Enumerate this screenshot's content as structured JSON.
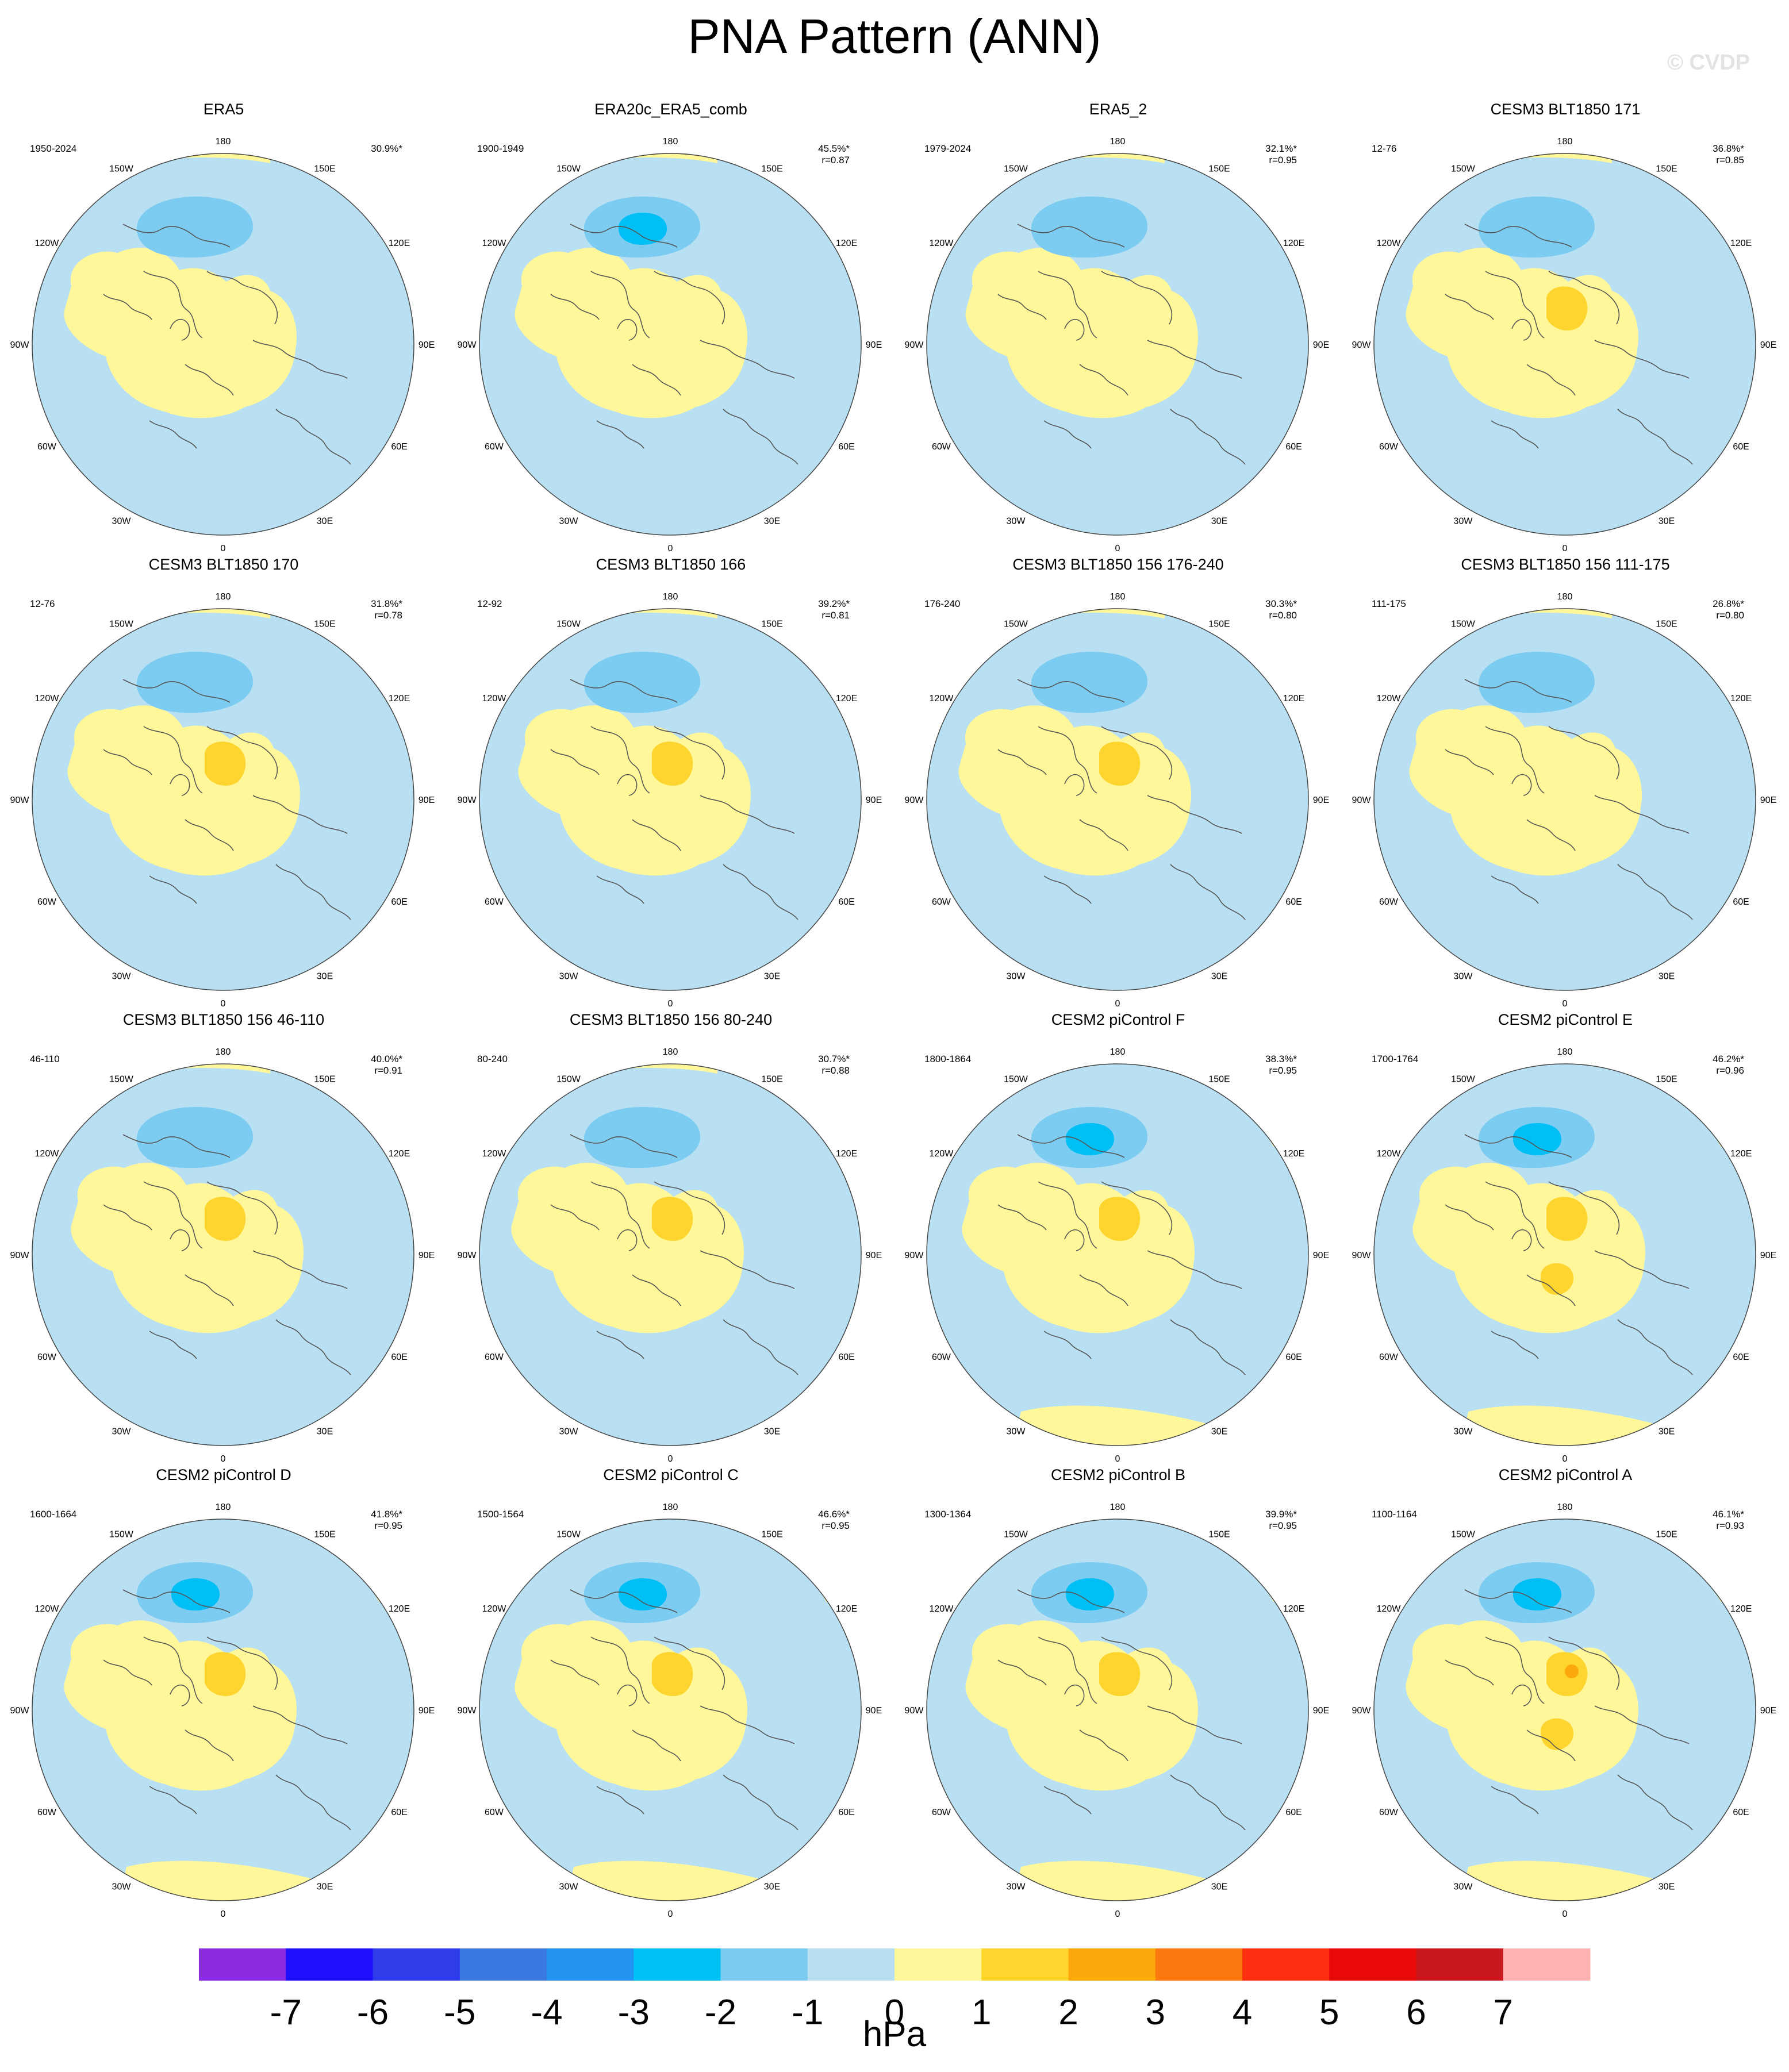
{
  "title": "PNA Pattern (ANN)",
  "watermark": "© CVDP",
  "units": "hPa",
  "lon_labels": [
    "180",
    "150E",
    "120E",
    "90E",
    "60E",
    "30E",
    "0",
    "30W",
    "60W",
    "90W",
    "120W",
    "150W"
  ],
  "colorbar": {
    "ticks": [
      "-7",
      "-6",
      "-5",
      "-4",
      "-3",
      "-2",
      "-1",
      "0",
      "1",
      "2",
      "3",
      "4",
      "5",
      "6",
      "7"
    ],
    "colors": [
      "#8a2be2",
      "#1e10ff",
      "#2e3de8",
      "#3a7ae0",
      "#2492f0",
      "#00bff5",
      "#7ccbf0",
      "#b8e0f2",
      "#fff79a",
      "#fdd52e",
      "#fda80a",
      "#fc7810",
      "#fc3010",
      "#ea0a0a",
      "#c8191e",
      "#ffb3b3"
    ]
  },
  "panels": [
    {
      "name": "ERA5",
      "period": "1950-2024",
      "pct": "30.9%*",
      "r": ""
    },
    {
      "name": "ERA20c_ERA5_comb",
      "period": "1900-1949",
      "pct": "45.5%*",
      "r": "r=0.87"
    },
    {
      "name": "ERA5_2",
      "period": "1979-2024",
      "pct": "32.1%*",
      "r": "r=0.95"
    },
    {
      "name": "CESM3 BLT1850 171",
      "period": "12-76",
      "pct": "36.8%*",
      "r": "r=0.85"
    },
    {
      "name": "CESM3 BLT1850 170",
      "period": "12-76",
      "pct": "31.8%*",
      "r": "r=0.78"
    },
    {
      "name": "CESM3 BLT1850 166",
      "period": "12-92",
      "pct": "39.2%*",
      "r": "r=0.81"
    },
    {
      "name": "CESM3 BLT1850 156 176-240",
      "period": "176-240",
      "pct": "30.3%*",
      "r": "r=0.80"
    },
    {
      "name": "CESM3 BLT1850 156 111-175",
      "period": "111-175",
      "pct": "26.8%*",
      "r": "r=0.80"
    },
    {
      "name": "CESM3 BLT1850 156 46-110",
      "period": "46-110",
      "pct": "40.0%*",
      "r": "r=0.91"
    },
    {
      "name": "CESM3 BLT1850 156 80-240",
      "period": "80-240",
      "pct": "30.7%*",
      "r": "r=0.88"
    },
    {
      "name": "CESM2 piControl F",
      "period": "1800-1864",
      "pct": "38.3%*",
      "r": "r=0.95"
    },
    {
      "name": "CESM2 piControl E",
      "period": "1700-1764",
      "pct": "46.2%*",
      "r": "r=0.96"
    },
    {
      "name": "CESM2 piControl D",
      "period": "1600-1664",
      "pct": "41.8%*",
      "r": "r=0.95"
    },
    {
      "name": "CESM2 piControl C",
      "period": "1500-1564",
      "pct": "46.6%*",
      "r": "r=0.95"
    },
    {
      "name": "CESM2 piControl B",
      "period": "1300-1364",
      "pct": "39.9%*",
      "r": "r=0.95"
    },
    {
      "name": "CESM2 piControl A",
      "period": "1100-1164",
      "pct": "46.1%*",
      "r": "r=0.93"
    }
  ]
}
